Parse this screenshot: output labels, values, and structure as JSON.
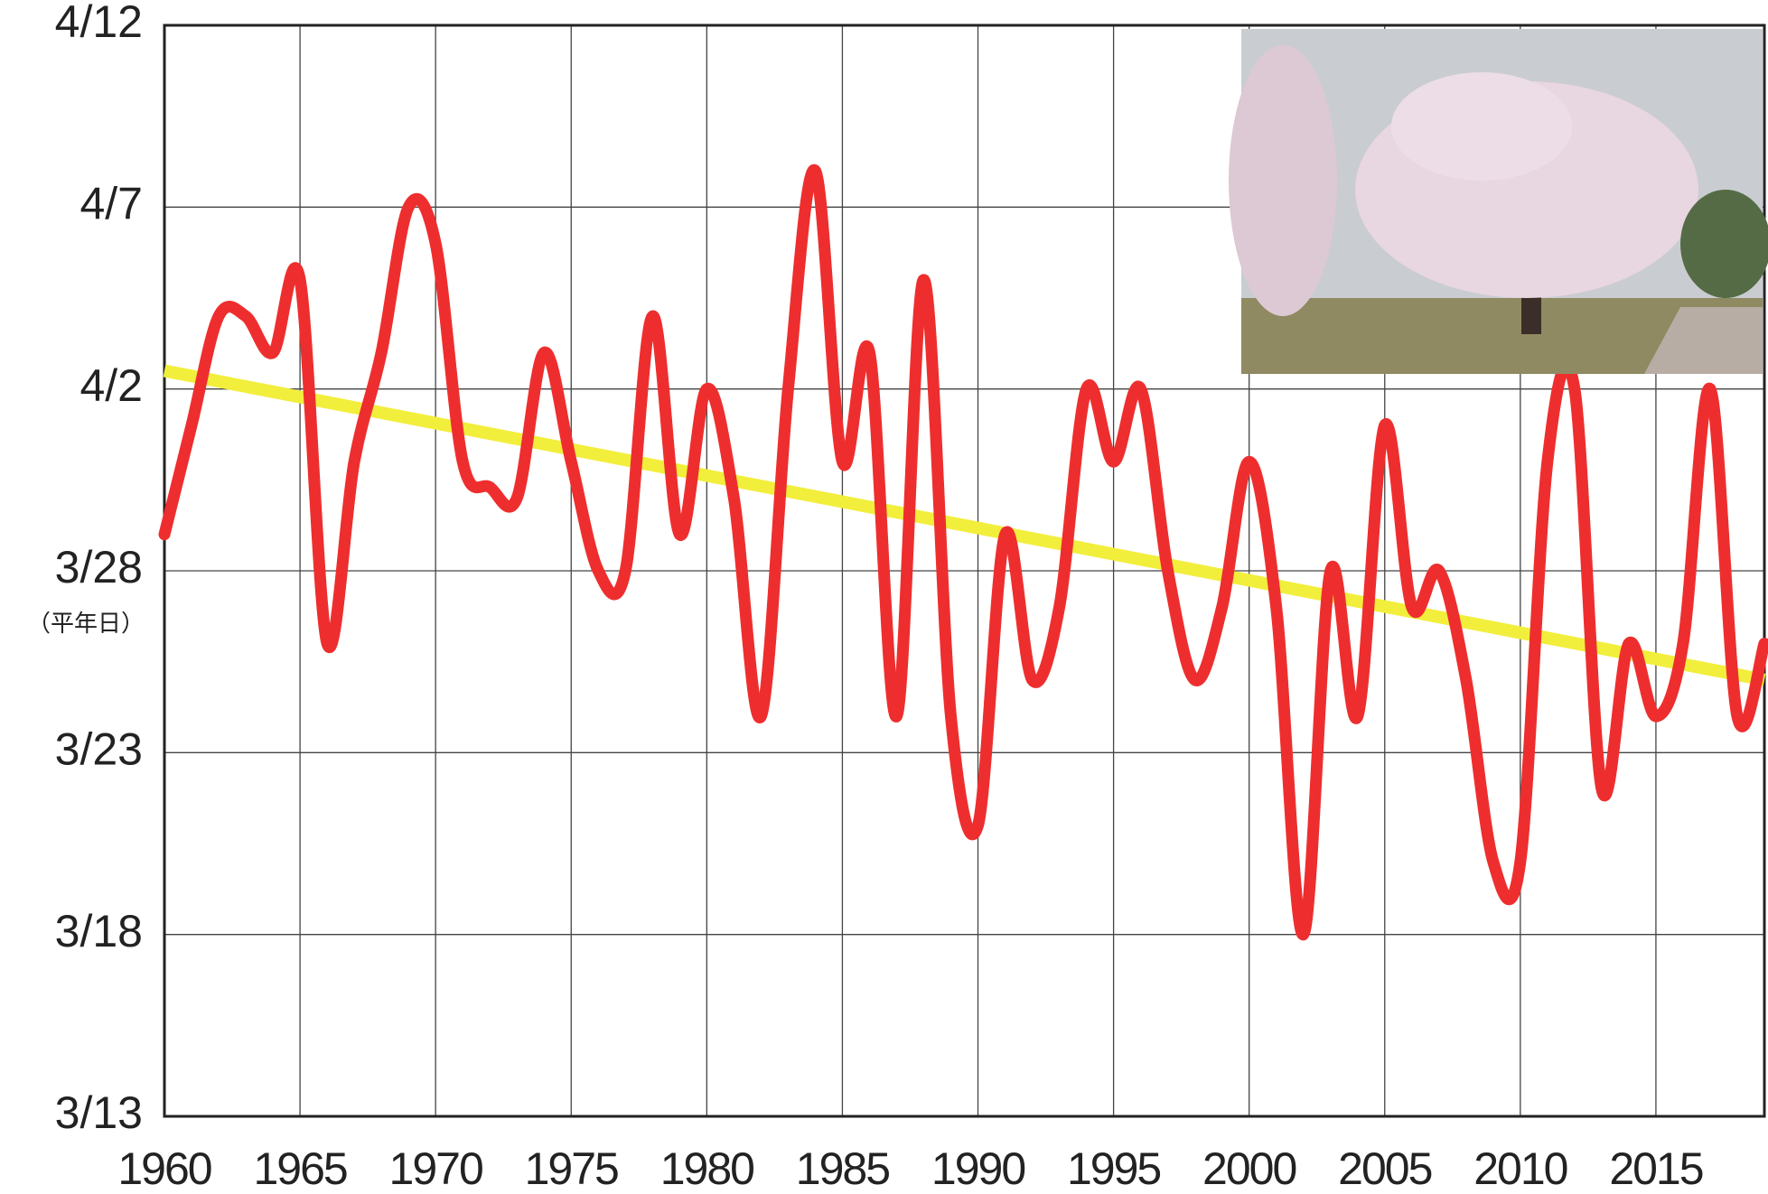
{
  "chart_data": {
    "type": "line",
    "annotation": "（平年日）",
    "x": [
      1960,
      1961,
      1962,
      1963,
      1964,
      1965,
      1966,
      1967,
      1968,
      1969,
      1970,
      1971,
      1972,
      1973,
      1974,
      1975,
      1976,
      1977,
      1978,
      1979,
      1980,
      1981,
      1982,
      1983,
      1984,
      1985,
      1986,
      1987,
      1988,
      1989,
      1990,
      1991,
      1992,
      1993,
      1994,
      1995,
      1996,
      1997,
      1998,
      1999,
      2000,
      2001,
      2002,
      2003,
      2004,
      2005,
      2006,
      2007,
      2008,
      2009,
      2010,
      2011,
      2012,
      2013,
      2014,
      2015,
      2016,
      2017,
      2018,
      2019
    ],
    "series": [
      {
        "color": "#ee2e2e",
        "values": [
          16,
          19,
          22,
          22,
          21,
          23,
          13,
          18,
          21,
          25,
          24,
          18,
          17.3,
          17,
          21,
          18,
          15,
          15,
          22,
          16,
          20,
          17,
          11,
          20,
          26,
          18,
          21,
          11,
          23,
          11,
          8,
          16,
          12,
          14,
          20,
          18,
          20,
          15,
          12,
          14,
          18,
          14,
          5,
          15,
          11,
          19,
          14,
          15,
          12,
          7,
          7,
          18,
          20,
          9,
          13,
          11,
          13,
          20,
          11,
          13
        ]
      }
    ],
    "trend": {
      "color": "#f2ee3c",
      "x": [
        1960,
        2019
      ],
      "values": [
        20.5,
        12
      ]
    },
    "xlim": [
      1960,
      2019
    ],
    "xticks": [
      1960,
      1965,
      1970,
      1975,
      1980,
      1985,
      1990,
      1995,
      2000,
      2005,
      2010,
      2015
    ],
    "ylim": [
      0,
      30
    ],
    "yticks": [
      {
        "value": 0,
        "label": "3/13"
      },
      {
        "value": 5,
        "label": "3/18"
      },
      {
        "value": 10,
        "label": "3/23"
      },
      {
        "value": 15,
        "label": "3/28"
      },
      {
        "value": 20,
        "label": "4/2"
      },
      {
        "value": 25,
        "label": "4/7"
      },
      {
        "value": 30,
        "label": "4/12"
      }
    ],
    "grid": true
  }
}
